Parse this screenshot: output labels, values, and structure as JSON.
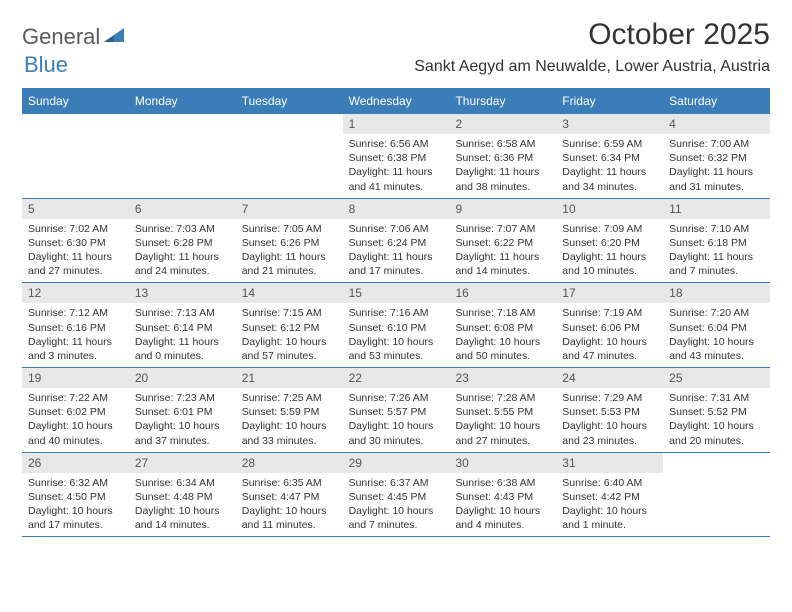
{
  "logo": {
    "text1": "General",
    "text2": "Blue"
  },
  "title": "October 2025",
  "location": "Sankt Aegyd am Neuwalde, Lower Austria, Austria",
  "colors": {
    "header_bg": "#3a7db8",
    "header_text": "#ffffff",
    "daynum_bg": "#e8e8e8",
    "border": "#3a7db8",
    "text": "#333333",
    "logo_gray": "#5a5a5a",
    "logo_blue": "#3a7db8"
  },
  "day_headers": [
    "Sunday",
    "Monday",
    "Tuesday",
    "Wednesday",
    "Thursday",
    "Friday",
    "Saturday"
  ],
  "weeks": [
    [
      {
        "n": "",
        "sr": "",
        "ss": "",
        "dl": ""
      },
      {
        "n": "",
        "sr": "",
        "ss": "",
        "dl": ""
      },
      {
        "n": "",
        "sr": "",
        "ss": "",
        "dl": ""
      },
      {
        "n": "1",
        "sr": "Sunrise: 6:56 AM",
        "ss": "Sunset: 6:38 PM",
        "dl": "Daylight: 11 hours and 41 minutes."
      },
      {
        "n": "2",
        "sr": "Sunrise: 6:58 AM",
        "ss": "Sunset: 6:36 PM",
        "dl": "Daylight: 11 hours and 38 minutes."
      },
      {
        "n": "3",
        "sr": "Sunrise: 6:59 AM",
        "ss": "Sunset: 6:34 PM",
        "dl": "Daylight: 11 hours and 34 minutes."
      },
      {
        "n": "4",
        "sr": "Sunrise: 7:00 AM",
        "ss": "Sunset: 6:32 PM",
        "dl": "Daylight: 11 hours and 31 minutes."
      }
    ],
    [
      {
        "n": "5",
        "sr": "Sunrise: 7:02 AM",
        "ss": "Sunset: 6:30 PM",
        "dl": "Daylight: 11 hours and 27 minutes."
      },
      {
        "n": "6",
        "sr": "Sunrise: 7:03 AM",
        "ss": "Sunset: 6:28 PM",
        "dl": "Daylight: 11 hours and 24 minutes."
      },
      {
        "n": "7",
        "sr": "Sunrise: 7:05 AM",
        "ss": "Sunset: 6:26 PM",
        "dl": "Daylight: 11 hours and 21 minutes."
      },
      {
        "n": "8",
        "sr": "Sunrise: 7:06 AM",
        "ss": "Sunset: 6:24 PM",
        "dl": "Daylight: 11 hours and 17 minutes."
      },
      {
        "n": "9",
        "sr": "Sunrise: 7:07 AM",
        "ss": "Sunset: 6:22 PM",
        "dl": "Daylight: 11 hours and 14 minutes."
      },
      {
        "n": "10",
        "sr": "Sunrise: 7:09 AM",
        "ss": "Sunset: 6:20 PM",
        "dl": "Daylight: 11 hours and 10 minutes."
      },
      {
        "n": "11",
        "sr": "Sunrise: 7:10 AM",
        "ss": "Sunset: 6:18 PM",
        "dl": "Daylight: 11 hours and 7 minutes."
      }
    ],
    [
      {
        "n": "12",
        "sr": "Sunrise: 7:12 AM",
        "ss": "Sunset: 6:16 PM",
        "dl": "Daylight: 11 hours and 3 minutes."
      },
      {
        "n": "13",
        "sr": "Sunrise: 7:13 AM",
        "ss": "Sunset: 6:14 PM",
        "dl": "Daylight: 11 hours and 0 minutes."
      },
      {
        "n": "14",
        "sr": "Sunrise: 7:15 AM",
        "ss": "Sunset: 6:12 PM",
        "dl": "Daylight: 10 hours and 57 minutes."
      },
      {
        "n": "15",
        "sr": "Sunrise: 7:16 AM",
        "ss": "Sunset: 6:10 PM",
        "dl": "Daylight: 10 hours and 53 minutes."
      },
      {
        "n": "16",
        "sr": "Sunrise: 7:18 AM",
        "ss": "Sunset: 6:08 PM",
        "dl": "Daylight: 10 hours and 50 minutes."
      },
      {
        "n": "17",
        "sr": "Sunrise: 7:19 AM",
        "ss": "Sunset: 6:06 PM",
        "dl": "Daylight: 10 hours and 47 minutes."
      },
      {
        "n": "18",
        "sr": "Sunrise: 7:20 AM",
        "ss": "Sunset: 6:04 PM",
        "dl": "Daylight: 10 hours and 43 minutes."
      }
    ],
    [
      {
        "n": "19",
        "sr": "Sunrise: 7:22 AM",
        "ss": "Sunset: 6:02 PM",
        "dl": "Daylight: 10 hours and 40 minutes."
      },
      {
        "n": "20",
        "sr": "Sunrise: 7:23 AM",
        "ss": "Sunset: 6:01 PM",
        "dl": "Daylight: 10 hours and 37 minutes."
      },
      {
        "n": "21",
        "sr": "Sunrise: 7:25 AM",
        "ss": "Sunset: 5:59 PM",
        "dl": "Daylight: 10 hours and 33 minutes."
      },
      {
        "n": "22",
        "sr": "Sunrise: 7:26 AM",
        "ss": "Sunset: 5:57 PM",
        "dl": "Daylight: 10 hours and 30 minutes."
      },
      {
        "n": "23",
        "sr": "Sunrise: 7:28 AM",
        "ss": "Sunset: 5:55 PM",
        "dl": "Daylight: 10 hours and 27 minutes."
      },
      {
        "n": "24",
        "sr": "Sunrise: 7:29 AM",
        "ss": "Sunset: 5:53 PM",
        "dl": "Daylight: 10 hours and 23 minutes."
      },
      {
        "n": "25",
        "sr": "Sunrise: 7:31 AM",
        "ss": "Sunset: 5:52 PM",
        "dl": "Daylight: 10 hours and 20 minutes."
      }
    ],
    [
      {
        "n": "26",
        "sr": "Sunrise: 6:32 AM",
        "ss": "Sunset: 4:50 PM",
        "dl": "Daylight: 10 hours and 17 minutes."
      },
      {
        "n": "27",
        "sr": "Sunrise: 6:34 AM",
        "ss": "Sunset: 4:48 PM",
        "dl": "Daylight: 10 hours and 14 minutes."
      },
      {
        "n": "28",
        "sr": "Sunrise: 6:35 AM",
        "ss": "Sunset: 4:47 PM",
        "dl": "Daylight: 10 hours and 11 minutes."
      },
      {
        "n": "29",
        "sr": "Sunrise: 6:37 AM",
        "ss": "Sunset: 4:45 PM",
        "dl": "Daylight: 10 hours and 7 minutes."
      },
      {
        "n": "30",
        "sr": "Sunrise: 6:38 AM",
        "ss": "Sunset: 4:43 PM",
        "dl": "Daylight: 10 hours and 4 minutes."
      },
      {
        "n": "31",
        "sr": "Sunrise: 6:40 AM",
        "ss": "Sunset: 4:42 PM",
        "dl": "Daylight: 10 hours and 1 minute."
      },
      {
        "n": "",
        "sr": "",
        "ss": "",
        "dl": ""
      }
    ]
  ]
}
